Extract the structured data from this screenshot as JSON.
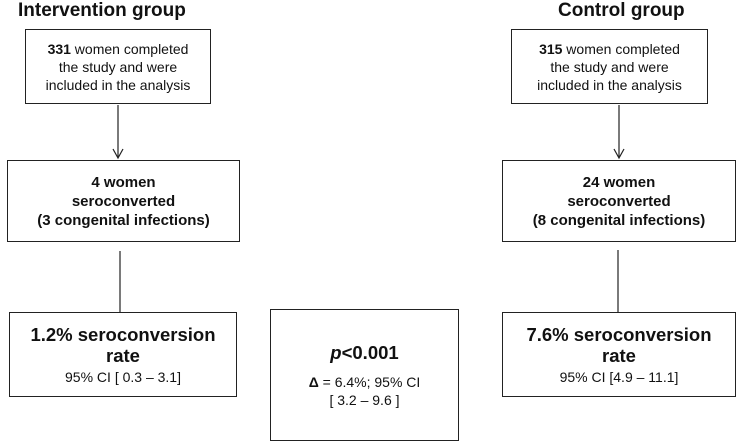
{
  "intervention": {
    "heading": "Intervention group",
    "completed": {
      "count": "331",
      "line1_rest": " women completed",
      "line2": "the study and were",
      "line3": "included in the analysis"
    },
    "seroconverted": {
      "line1": "4 women",
      "line2": "seroconverted",
      "line3": "(3 congenital infections)"
    },
    "rate": {
      "label": "1.2% seroconversion",
      "label2": "rate",
      "ci": "95% CI [ 0.3 – 3.1]"
    }
  },
  "control": {
    "heading": "Control group",
    "completed": {
      "count": "315",
      "line1_rest": " women completed",
      "line2": "the study and were",
      "line3": "included in the analysis"
    },
    "seroconverted": {
      "line1": "24 women",
      "line2": "seroconverted",
      "line3": "(8 congenital infections)"
    },
    "rate": {
      "label": "7.6% seroconversion",
      "label2": "rate",
      "ci": "95% CI [4.9 – 11.1]"
    }
  },
  "comparison": {
    "p_symbol": "p",
    "p_value": "<0.001",
    "delta_symbol": "Δ",
    "delta_text": " = 6.4%; 95% CI",
    "ci": "[ 3.2 – 9.6 ]"
  }
}
